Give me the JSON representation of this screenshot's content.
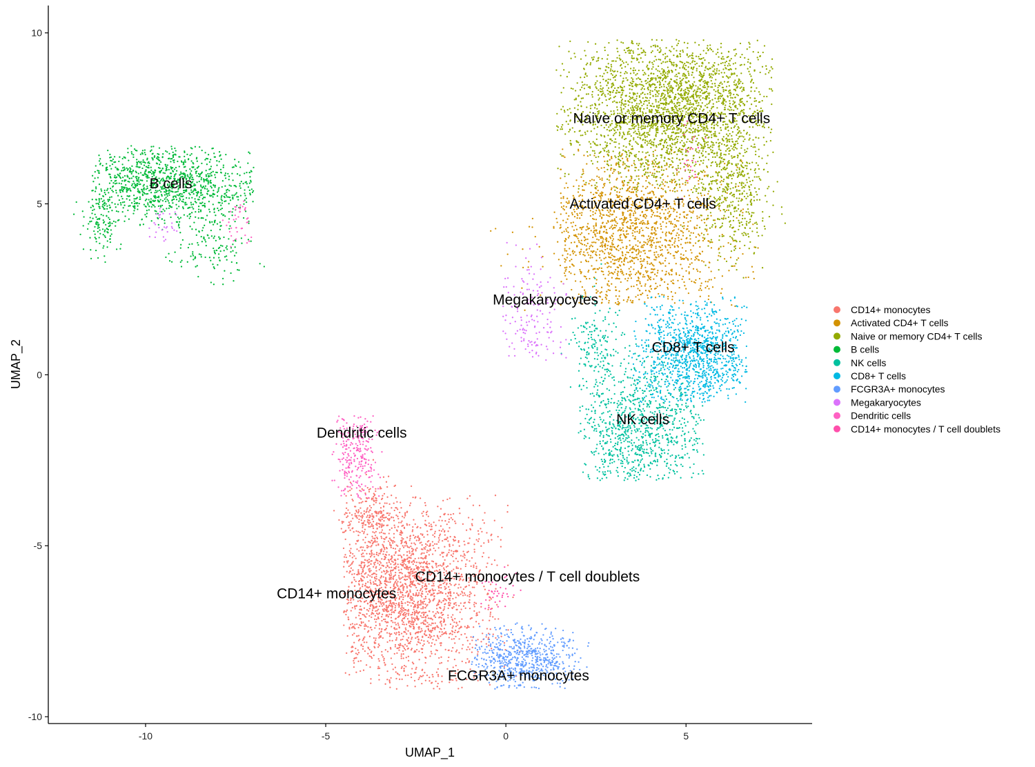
{
  "chart_data": {
    "type": "scatter",
    "title": "",
    "xlabel": "UMAP_1",
    "ylabel": "UMAP_2",
    "xlim": [
      -12.7,
      8.5
    ],
    "ylim": [
      -10.2,
      10.8
    ],
    "x_ticks": [
      -10,
      -5,
      0,
      5
    ],
    "y_ticks": [
      -10,
      -5,
      0,
      5,
      10
    ],
    "grid": false,
    "legend_position": "right",
    "series": [
      {
        "name": "CD14+ monocytes",
        "color": "#F8766D",
        "label_position": [
          -4.7,
          -6.4
        ],
        "clusters": [
          {
            "cx": -2.8,
            "cy": -6.3,
            "sx": 1.15,
            "sy": 1.35,
            "n": 2300,
            "xmin": -4.5,
            "xmax": 0.4,
            "ymin": -9.2,
            "ymax": -3.5
          },
          {
            "cx": -3.8,
            "cy": -4.0,
            "sx": 0.4,
            "sy": 0.4,
            "n": 180
          }
        ]
      },
      {
        "name": "Activated CD4+ T cells",
        "color": "#D39200",
        "label_position": [
          3.8,
          5.0
        ],
        "clusters": [
          {
            "cx": 3.5,
            "cy": 4.2,
            "sx": 1.3,
            "sy": 1.3,
            "n": 1600,
            "xmin": 1.5,
            "xmax": 7.0,
            "ymin": 2.0,
            "ymax": 6.6
          },
          {
            "cx": 1.0,
            "cy": 3.7,
            "sx": 0.6,
            "sy": 0.6,
            "n": 40
          }
        ]
      },
      {
        "name": "Naive or memory CD4+ T cells",
        "color": "#93AA00",
        "label_position": [
          4.6,
          7.5
        ],
        "clusters": [
          {
            "cx": 4.5,
            "cy": 7.8,
            "sx": 1.5,
            "sy": 1.1,
            "n": 2600,
            "xmin": 1.4,
            "xmax": 7.4,
            "ymin": 5.3,
            "ymax": 9.8
          },
          {
            "cx": 6.3,
            "cy": 5.3,
            "sx": 0.5,
            "sy": 0.9,
            "n": 450
          }
        ]
      },
      {
        "name": "B cells",
        "color": "#00BA38",
        "label_position": [
          -9.3,
          5.6
        ],
        "clusters": [
          {
            "cx": -9.5,
            "cy": 5.6,
            "sx": 1.3,
            "sy": 0.55,
            "n": 1100,
            "xmin": -11.5,
            "xmax": -7.0,
            "ymin": 4.3,
            "ymax": 6.7
          },
          {
            "cx": -8.2,
            "cy": 3.8,
            "sx": 0.55,
            "sy": 0.5,
            "n": 150
          },
          {
            "cx": -11.2,
            "cy": 4.4,
            "sx": 0.25,
            "sy": 0.45,
            "n": 120
          }
        ]
      },
      {
        "name": "NK cells",
        "color": "#00C19F",
        "label_position": [
          3.8,
          -1.3
        ],
        "clusters": [
          {
            "cx": 3.7,
            "cy": -1.5,
            "sx": 0.9,
            "sy": 1.1,
            "n": 1000,
            "xmin": 2.0,
            "xmax": 5.5,
            "ymin": -3.1,
            "ymax": 1.0
          },
          {
            "cx": 2.5,
            "cy": 1.0,
            "sx": 0.35,
            "sy": 0.6,
            "n": 150
          }
        ]
      },
      {
        "name": "CD8+ T cells",
        "color": "#00B9E3",
        "label_position": [
          5.2,
          0.8
        ],
        "clusters": [
          {
            "cx": 5.3,
            "cy": 0.6,
            "sx": 0.85,
            "sy": 0.8,
            "n": 1100,
            "xmin": 3.5,
            "xmax": 6.7,
            "ymin": -0.8,
            "ymax": 2.3
          }
        ]
      },
      {
        "name": "FCGR3A+ monocytes",
        "color": "#619CFF",
        "label_position": [
          0.35,
          -8.8
        ],
        "clusters": [
          {
            "cx": 0.5,
            "cy": -8.3,
            "sx": 0.8,
            "sy": 0.45,
            "n": 650,
            "xmin": -1.0,
            "xmax": 2.3,
            "ymin": -9.2,
            "ymax": -7.2
          }
        ]
      },
      {
        "name": "Megakaryocytes",
        "color": "#DB72FB",
        "label_position": [
          1.1,
          2.2
        ],
        "clusters": [
          {
            "cx": 0.7,
            "cy": 1.6,
            "sx": 0.45,
            "sy": 1.0,
            "n": 160,
            "xmin": -0.2,
            "xmax": 1.9,
            "ymin": 0.4,
            "ymax": 4.0
          },
          {
            "cx": -9.5,
            "cy": 4.4,
            "sx": 0.2,
            "sy": 0.25,
            "n": 30
          }
        ]
      },
      {
        "name": "Dendritic cells",
        "color": "#FF61C3",
        "label_position": [
          -4.0,
          -1.7
        ],
        "clusters": [
          {
            "cx": -4.2,
            "cy": -2.3,
            "sx": 0.35,
            "sy": 0.7,
            "n": 260,
            "xmin": -4.9,
            "xmax": -3.3,
            "ymin": -3.6,
            "ymax": -1.2
          },
          {
            "cx": -7.4,
            "cy": 4.5,
            "sx": 0.2,
            "sy": 0.3,
            "n": 40
          }
        ]
      },
      {
        "name": "CD14+ monocytes / T cell doublets",
        "color": "#FF4FAB",
        "label_position": [
          0.6,
          -5.9
        ],
        "clusters": [
          {
            "cx": -0.2,
            "cy": -6.3,
            "sx": 0.25,
            "sy": 0.3,
            "n": 40
          },
          {
            "cx": 5.1,
            "cy": 6.3,
            "sx": 0.15,
            "sy": 0.4,
            "n": 25
          }
        ]
      }
    ]
  }
}
